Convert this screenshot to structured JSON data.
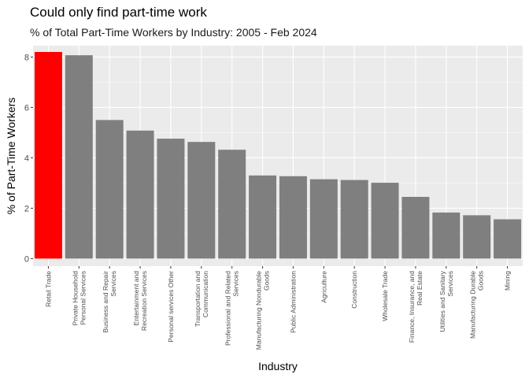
{
  "chart_data": {
    "type": "bar",
    "title": "Could only find part-time work",
    "subtitle": "% of Total Part-Time Workers by Industry: 2005 - Feb 2024",
    "xlabel": "Industry",
    "ylabel": "% of Part-Time Workers",
    "ylim": [
      -0.3,
      8.45
    ],
    "yticks": [
      0,
      2,
      4,
      6,
      8
    ],
    "grid": true,
    "colors": {
      "panel": "#EBEBEB",
      "grid": "#FFFFFF",
      "bar": "#7F7F7F",
      "highlight": "#FF0000"
    },
    "categories": [
      [
        "Retail Trade"
      ],
      [
        "Private Household",
        "Personal Services"
      ],
      [
        "Business and Repair",
        "Services"
      ],
      [
        "Entertainment and",
        "Recreation Services"
      ],
      [
        "Personal services Other"
      ],
      [
        "Transportation and",
        "Communication"
      ],
      [
        "Professional and Related",
        "Services"
      ],
      [
        "Manufacturing Nondurable",
        "Goods"
      ],
      [
        "Public Administration"
      ],
      [
        "Agriculture"
      ],
      [
        "Construction"
      ],
      [
        "Wholesale Trade"
      ],
      [
        "Finance, Insurance, and",
        "Real Estate"
      ],
      [
        "Utilities and Sanitary",
        "Services"
      ],
      [
        "Manufacturing Durable",
        "Goods"
      ],
      [
        "Mining"
      ]
    ],
    "values": [
      8.2,
      8.07,
      5.5,
      5.08,
      4.76,
      4.63,
      4.32,
      3.3,
      3.27,
      3.15,
      3.12,
      3.01,
      2.45,
      1.83,
      1.72,
      1.56
    ],
    "highlight_index": 0
  }
}
